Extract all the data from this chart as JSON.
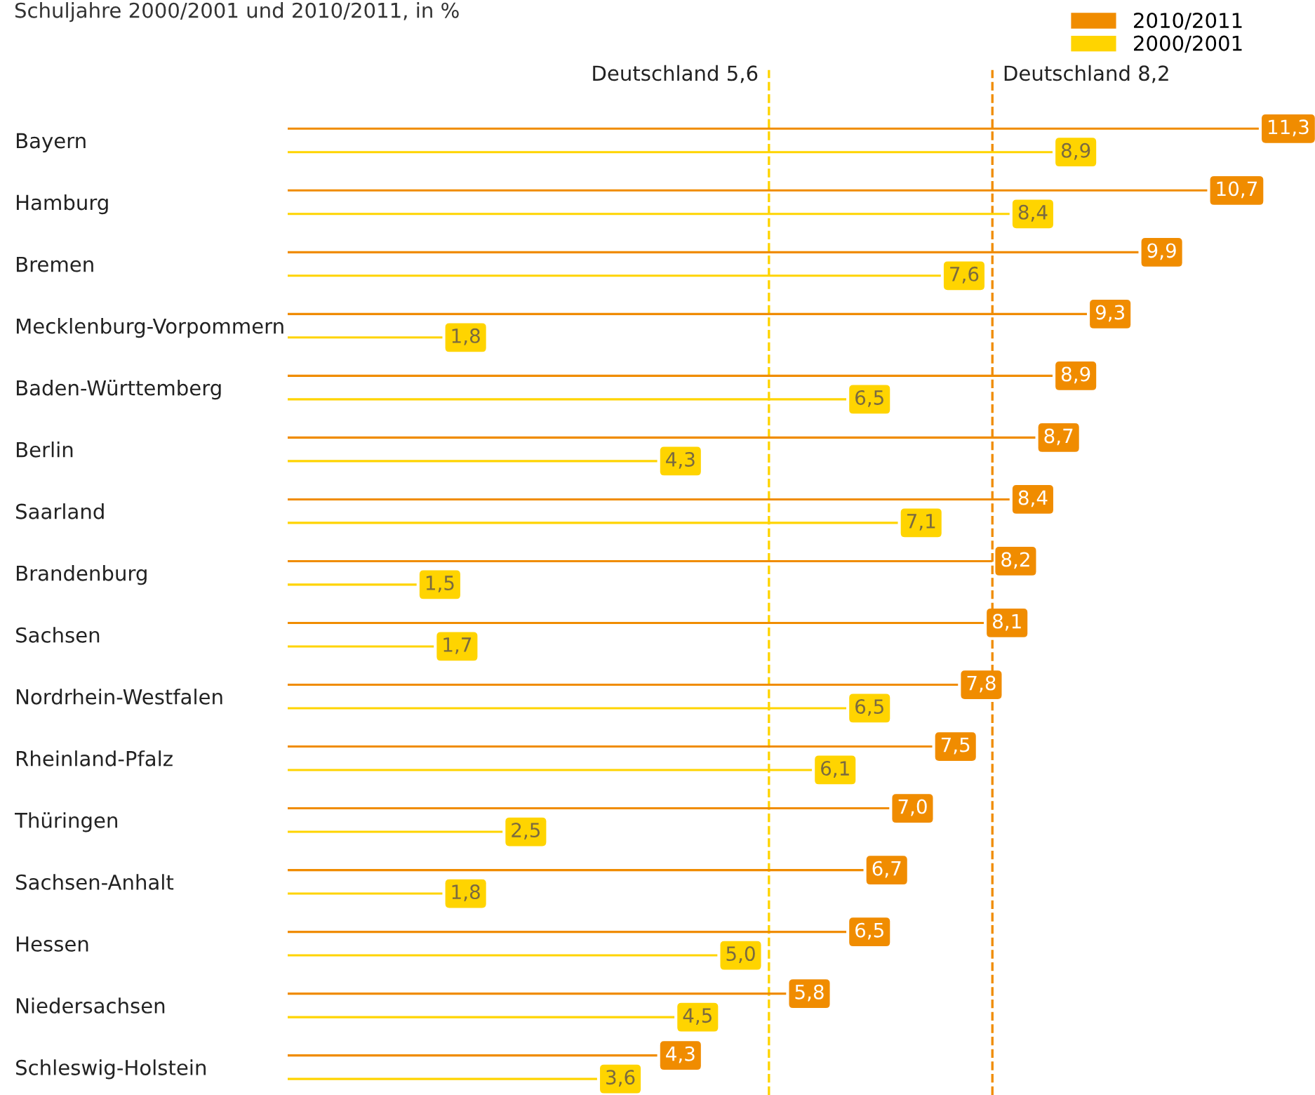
{
  "chart_data": {
    "type": "bar",
    "orientation": "horizontal",
    "title": "Schuljahre 2000/2001 und 2010/2011, in %",
    "categories": [
      "Bayern",
      "Hamburg",
      "Bremen",
      "Mecklenburg-Vorpommern",
      "Baden-Württemberg",
      "Berlin",
      "Saarland",
      "Brandenburg",
      "Sachsen",
      "Nordrhein-Westfalen",
      "Rheinland-Pfalz",
      "Thüringen",
      "Sachsen-Anhalt",
      "Hessen",
      "Niedersachsen",
      "Schleswig-Holstein"
    ],
    "series": [
      {
        "name": "2010/2011",
        "color": "#f08c00",
        "values": [
          11.3,
          10.7,
          9.9,
          9.3,
          8.9,
          8.7,
          8.4,
          8.2,
          8.1,
          7.8,
          7.5,
          7.0,
          6.7,
          6.5,
          5.8,
          4.3
        ],
        "value_labels": [
          "11,3",
          "10,7",
          "9,9",
          "9,3",
          "8,9",
          "8,7",
          "8,4",
          "8,2",
          "8,1",
          "7,8",
          "7,5",
          "7,0",
          "6,7",
          "6,5",
          "5,8",
          "4,3"
        ]
      },
      {
        "name": "2000/2001",
        "color": "#ffd400",
        "values": [
          8.9,
          8.4,
          7.6,
          1.8,
          6.5,
          4.3,
          7.1,
          1.5,
          1.7,
          6.5,
          6.1,
          2.5,
          1.8,
          5.0,
          4.5,
          3.6
        ],
        "value_labels": [
          "8,9",
          "8,4",
          "7,6",
          "1,8",
          "6,5",
          "4,3",
          "7,1",
          "1,5",
          "1,7",
          "6,5",
          "6,1",
          "2,5",
          "1,8",
          "5,0",
          "4,5",
          "3,6"
        ]
      }
    ],
    "ref_lines": [
      {
        "axis": "x",
        "value": 5.6,
        "label": "Deutschland 5,6",
        "color": "#ffd400",
        "line_style": "dashed"
      },
      {
        "axis": "x",
        "value": 8.2,
        "label": "Deutschland 8,2",
        "color": "#f08c00",
        "line_style": "dashed"
      }
    ],
    "legend": "top right",
    "grid": false
  }
}
